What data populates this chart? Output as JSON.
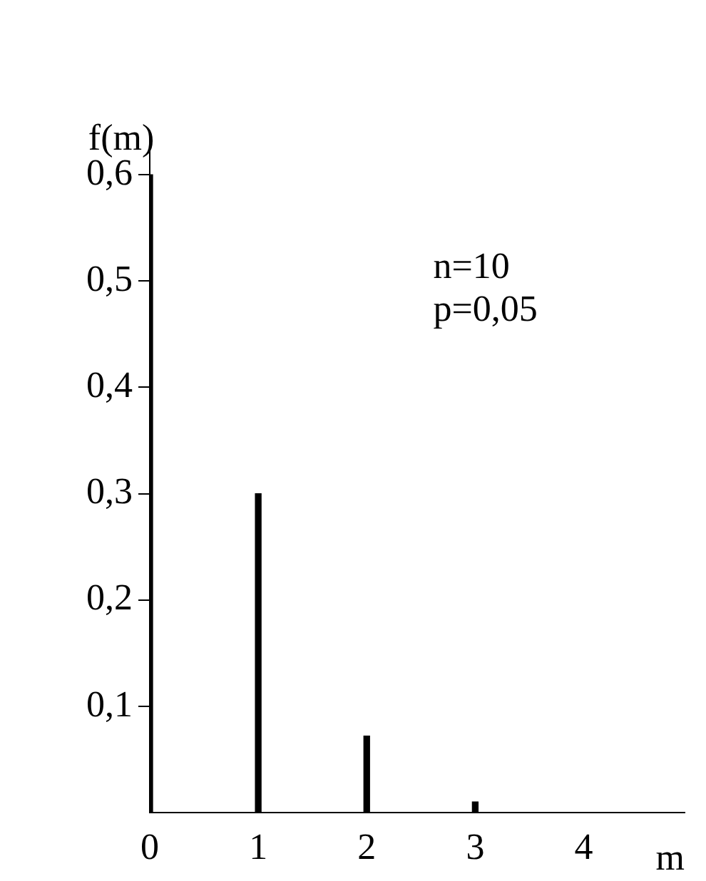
{
  "chart_data": {
    "type": "bar",
    "x": [
      0,
      1,
      2,
      3
    ],
    "values": [
      0.6,
      0.3,
      0.072,
      0.01
    ],
    "color": "#000000",
    "xlim": [
      0,
      4.93
    ],
    "xticks": [
      0,
      1,
      2,
      3,
      4
    ],
    "ylim": [
      0,
      0.637
    ],
    "yticks": [
      {
        "value": 0.1,
        "label": "0,1"
      },
      {
        "value": 0.2,
        "label": "0,2"
      },
      {
        "value": 0.3,
        "label": "0,3"
      },
      {
        "value": 0.4,
        "label": "0,4"
      },
      {
        "value": 0.5,
        "label": "0,5"
      },
      {
        "value": 0.6,
        "label": "0,6"
      }
    ],
    "xlabel": "m",
    "ylabel": "f(m)",
    "annotations": [
      "n=10",
      "p=0,05"
    ],
    "grid": false,
    "legend": false
  }
}
